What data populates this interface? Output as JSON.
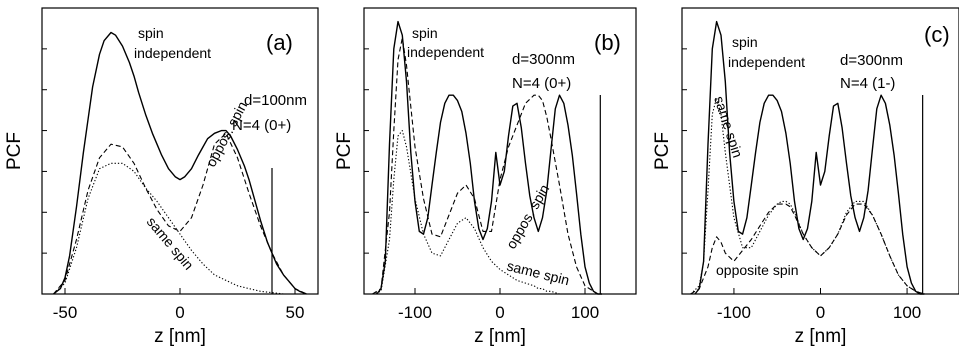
{
  "chart_data": [
    {
      "type": "line",
      "panel_label": "(a)",
      "xlabel": "z [nm]",
      "ylabel": "PCF",
      "xlim": [
        -60,
        60
      ],
      "ylim": [
        0,
        1.05
      ],
      "xticks": [
        -50,
        0,
        50
      ],
      "xtick_labels": [
        "-50",
        "0",
        "50"
      ],
      "params": [
        "d=100nm",
        "N=4 (0+)"
      ],
      "marker_line_x": 40,
      "grid": false,
      "series": [
        {
          "label": "spin independent",
          "style": "solid",
          "x": [
            -55,
            -52,
            -50,
            -48,
            -45,
            -42,
            -40,
            -38,
            -35,
            -33,
            -30,
            -28,
            -25,
            -22,
            -20,
            -18,
            -15,
            -12,
            -10,
            -8,
            -5,
            -2,
            0,
            2,
            5,
            8,
            10,
            12,
            15,
            18,
            20,
            22,
            25,
            28,
            30,
            32,
            35,
            38,
            40,
            42,
            45,
            48,
            50,
            52,
            55
          ],
          "y": [
            0.0,
            0.02,
            0.06,
            0.14,
            0.32,
            0.52,
            0.64,
            0.76,
            0.88,
            0.93,
            0.96,
            0.95,
            0.91,
            0.85,
            0.8,
            0.74,
            0.66,
            0.59,
            0.55,
            0.51,
            0.46,
            0.43,
            0.42,
            0.43,
            0.46,
            0.51,
            0.54,
            0.57,
            0.59,
            0.6,
            0.6,
            0.58,
            0.53,
            0.47,
            0.42,
            0.36,
            0.27,
            0.19,
            0.15,
            0.11,
            0.07,
            0.04,
            0.02,
            0.01,
            0.0
          ]
        },
        {
          "label": "oppos. spin",
          "style": "dashed",
          "x": [
            -55,
            -50,
            -45,
            -40,
            -35,
            -30,
            -25,
            -20,
            -15,
            -10,
            -5,
            0,
            5,
            10,
            15,
            20,
            25,
            30,
            35,
            40,
            45,
            50,
            55
          ],
          "y": [
            0.0,
            0.05,
            0.2,
            0.38,
            0.5,
            0.55,
            0.54,
            0.48,
            0.39,
            0.31,
            0.25,
            0.23,
            0.28,
            0.4,
            0.55,
            0.59,
            0.5,
            0.37,
            0.25,
            0.15,
            0.07,
            0.02,
            0.0
          ]
        },
        {
          "label": "same spin",
          "style": "dotted",
          "x": [
            -55,
            -50,
            -45,
            -40,
            -35,
            -30,
            -25,
            -20,
            -15,
            -10,
            -5,
            0,
            5,
            10,
            15,
            20,
            25,
            30,
            35,
            40,
            45,
            50,
            55
          ],
          "y": [
            0.0,
            0.04,
            0.17,
            0.35,
            0.46,
            0.48,
            0.48,
            0.45,
            0.39,
            0.34,
            0.28,
            0.22,
            0.16,
            0.11,
            0.07,
            0.05,
            0.03,
            0.02,
            0.01,
            0.005,
            0.0,
            0.0,
            0.0
          ]
        }
      ]
    },
    {
      "type": "line",
      "panel_label": "(b)",
      "xlabel": "z [nm]",
      "ylabel": "PCF",
      "xlim": [
        -160,
        160
      ],
      "ylim": [
        0,
        1.05
      ],
      "xticks": [
        -100,
        0,
        100
      ],
      "xtick_labels": [
        "-100",
        "0",
        "100"
      ],
      "params": [
        "d=300nm",
        "N=4 (0+)"
      ],
      "marker_line_x": 118,
      "grid": false,
      "series": [
        {
          "label": "spin independent",
          "style": "solid",
          "x": [
            -145,
            -140,
            -135,
            -130,
            -125,
            -120,
            -115,
            -110,
            -105,
            -100,
            -95,
            -90,
            -85,
            -80,
            -75,
            -70,
            -65,
            -60,
            -55,
            -50,
            -45,
            -40,
            -35,
            -30,
            -25,
            -20,
            -15,
            -10,
            -5,
            0,
            5,
            10,
            15,
            20,
            25,
            30,
            35,
            40,
            45,
            50,
            55,
            60,
            65,
            70,
            75,
            80,
            85,
            90,
            95,
            100,
            105,
            110,
            115,
            120
          ],
          "y": [
            0.0,
            0.02,
            0.12,
            0.55,
            0.9,
            1.0,
            0.95,
            0.78,
            0.52,
            0.34,
            0.23,
            0.22,
            0.28,
            0.4,
            0.52,
            0.63,
            0.7,
            0.73,
            0.73,
            0.71,
            0.67,
            0.59,
            0.48,
            0.34,
            0.24,
            0.2,
            0.24,
            0.34,
            0.52,
            0.4,
            0.45,
            0.58,
            0.69,
            0.7,
            0.61,
            0.48,
            0.36,
            0.28,
            0.23,
            0.28,
            0.38,
            0.53,
            0.68,
            0.73,
            0.7,
            0.62,
            0.51,
            0.37,
            0.22,
            0.1,
            0.04,
            0.01,
            0.0,
            0.0
          ]
        },
        {
          "label": "oppos. spin",
          "style": "dashed",
          "x": [
            -150,
            -140,
            -130,
            -125,
            -120,
            -115,
            -110,
            -100,
            -90,
            -80,
            -70,
            -60,
            -50,
            -40,
            -30,
            -20,
            -10,
            0,
            10,
            20,
            30,
            40,
            45,
            50,
            55,
            60,
            70,
            80,
            90,
            100,
            110,
            115,
            120
          ],
          "y": [
            0.0,
            0.02,
            0.3,
            0.6,
            0.86,
            0.94,
            0.84,
            0.54,
            0.35,
            0.22,
            0.21,
            0.29,
            0.37,
            0.4,
            0.35,
            0.23,
            0.23,
            0.42,
            0.54,
            0.62,
            0.7,
            0.73,
            0.73,
            0.71,
            0.65,
            0.57,
            0.4,
            0.22,
            0.1,
            0.03,
            0.01,
            0.0,
            0.0
          ]
        },
        {
          "label": "same spin",
          "style": "dotted",
          "x": [
            -150,
            -140,
            -130,
            -125,
            -120,
            -115,
            -110,
            -100,
            -90,
            -80,
            -70,
            -60,
            -50,
            -40,
            -30,
            -20,
            -10,
            0,
            10,
            20,
            30,
            40,
            45,
            50,
            55,
            60,
            70,
            80,
            90,
            100,
            110,
            115,
            120
          ],
          "y": [
            0.0,
            0.01,
            0.2,
            0.42,
            0.58,
            0.6,
            0.54,
            0.35,
            0.22,
            0.15,
            0.14,
            0.2,
            0.26,
            0.28,
            0.24,
            0.17,
            0.12,
            0.09,
            0.07,
            0.05,
            0.04,
            0.03,
            0.02,
            0.02,
            0.01,
            0.01,
            0.0,
            0.0,
            0.0,
            0.0,
            0.0,
            0.0,
            0.0
          ]
        }
      ]
    },
    {
      "type": "line",
      "panel_label": "(c)",
      "xlabel": "z [nm]",
      "ylabel": "PCF",
      "xlim": [
        -160,
        160
      ],
      "ylim": [
        0,
        1.05
      ],
      "xticks": [
        -100,
        0,
        100
      ],
      "xtick_labels": [
        "-100",
        "0",
        "100"
      ],
      "params": [
        "d=300nm",
        "N=4 (1-)"
      ],
      "marker_line_x": 118,
      "grid": false,
      "series": [
        {
          "label": "spin independent",
          "style": "solid",
          "x": [
            -145,
            -140,
            -135,
            -130,
            -125,
            -120,
            -115,
            -110,
            -105,
            -100,
            -95,
            -90,
            -85,
            -80,
            -75,
            -70,
            -65,
            -60,
            -55,
            -50,
            -45,
            -40,
            -35,
            -30,
            -25,
            -20,
            -15,
            -10,
            -5,
            0,
            5,
            10,
            15,
            20,
            25,
            30,
            35,
            40,
            45,
            50,
            55,
            60,
            65,
            70,
            75,
            80,
            85,
            90,
            95,
            100,
            105,
            110,
            115,
            120
          ],
          "y": [
            0.0,
            0.02,
            0.12,
            0.55,
            0.9,
            1.0,
            0.95,
            0.78,
            0.52,
            0.34,
            0.23,
            0.22,
            0.28,
            0.4,
            0.52,
            0.63,
            0.7,
            0.73,
            0.73,
            0.71,
            0.67,
            0.59,
            0.48,
            0.34,
            0.24,
            0.2,
            0.24,
            0.34,
            0.52,
            0.4,
            0.45,
            0.58,
            0.69,
            0.7,
            0.61,
            0.48,
            0.36,
            0.28,
            0.23,
            0.28,
            0.38,
            0.53,
            0.68,
            0.73,
            0.7,
            0.62,
            0.51,
            0.37,
            0.22,
            0.1,
            0.04,
            0.01,
            0.0,
            0.0
          ]
        },
        {
          "label": "same spin",
          "style": "dotted",
          "x": [
            -150,
            -140,
            -135,
            -130,
            -125,
            -120,
            -115,
            -110,
            -100,
            -90,
            -80,
            -70,
            -60,
            -50,
            -45,
            -40,
            -35,
            -30,
            -20,
            -10,
            0,
            10,
            20,
            30,
            40,
            45,
            50,
            60,
            70,
            80,
            90,
            100,
            110,
            120
          ],
          "y": [
            0.0,
            0.03,
            0.12,
            0.38,
            0.66,
            0.72,
            0.66,
            0.52,
            0.28,
            0.17,
            0.17,
            0.23,
            0.29,
            0.33,
            0.34,
            0.34,
            0.33,
            0.3,
            0.22,
            0.17,
            0.14,
            0.17,
            0.22,
            0.3,
            0.34,
            0.34,
            0.34,
            0.29,
            0.22,
            0.14,
            0.07,
            0.03,
            0.01,
            0.0
          ]
        },
        {
          "label": "opposite spin",
          "style": "dashed",
          "x": [
            -150,
            -140,
            -130,
            -125,
            -120,
            -115,
            -110,
            -100,
            -90,
            -80,
            -70,
            -60,
            -50,
            -45,
            -40,
            -35,
            -30,
            -20,
            -10,
            0,
            10,
            20,
            30,
            40,
            45,
            50,
            60,
            70,
            80,
            90,
            100,
            110,
            120
          ],
          "y": [
            0.0,
            0.02,
            0.1,
            0.17,
            0.21,
            0.19,
            0.15,
            0.12,
            0.16,
            0.2,
            0.25,
            0.3,
            0.33,
            0.33,
            0.33,
            0.32,
            0.29,
            0.22,
            0.17,
            0.14,
            0.17,
            0.22,
            0.29,
            0.33,
            0.33,
            0.33,
            0.29,
            0.22,
            0.14,
            0.07,
            0.03,
            0.01,
            0.0
          ]
        }
      ]
    }
  ]
}
